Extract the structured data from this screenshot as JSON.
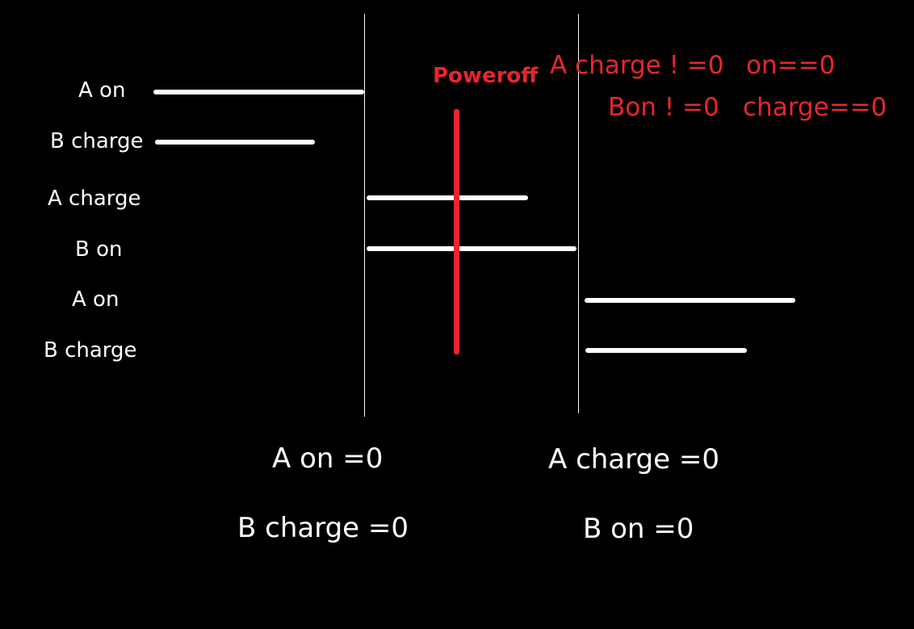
{
  "colors": {
    "background": "#000000",
    "bar": "#ffffff",
    "divider": "#ffffff",
    "poweroff": "#e8262c"
  },
  "rows": [
    {
      "label": "A on"
    },
    {
      "label": "B charge"
    },
    {
      "label": "A charge"
    },
    {
      "label": "B on"
    },
    {
      "label": "A on"
    },
    {
      "label": "B charge"
    }
  ],
  "poweroff": {
    "label": "Poweroff"
  },
  "conditions": {
    "line1_left": "A charge ! =0",
    "line1_right": "on==0",
    "line2_left": "Bon ! =0",
    "line2_right": "charge==0"
  },
  "bottom": {
    "left_line1": "A on =0",
    "left_line2": "B charge =0",
    "right_line1": "A charge =0",
    "right_line2": "B on =0"
  }
}
